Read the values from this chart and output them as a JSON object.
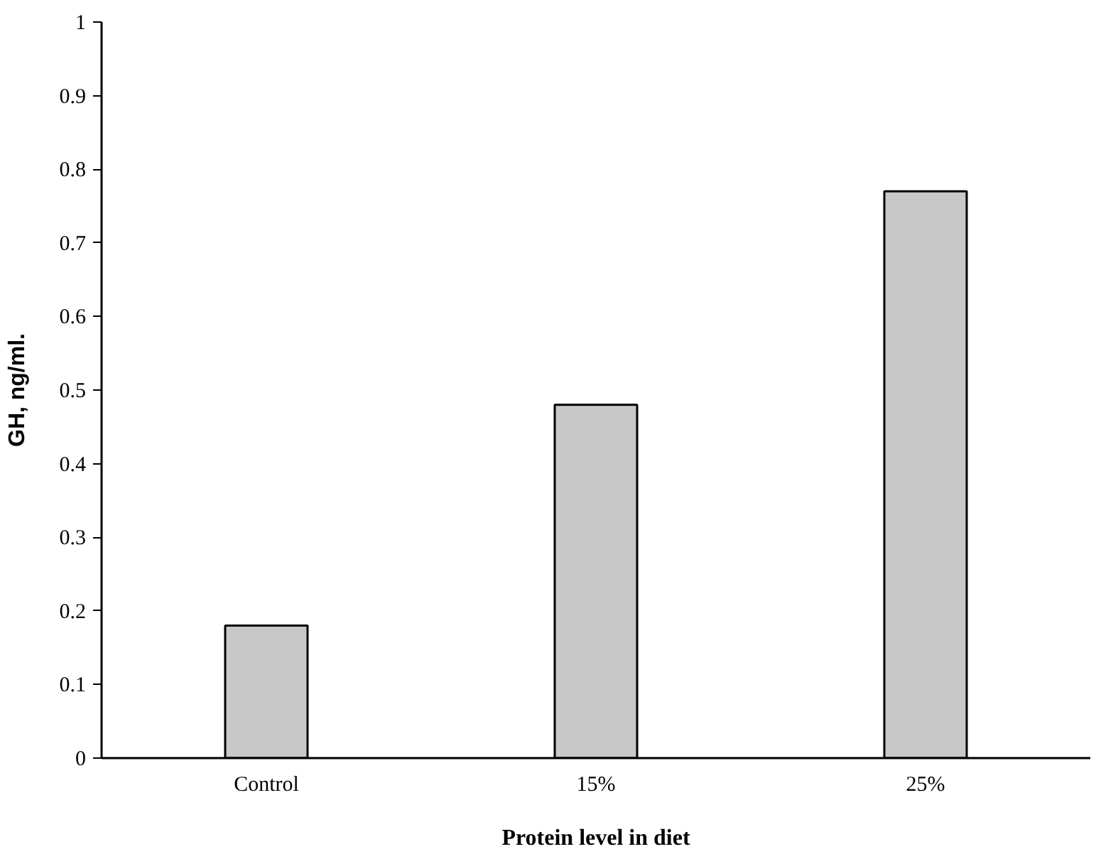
{
  "chart_data": {
    "type": "bar",
    "xlabel": "Protein level in diet",
    "ylabel": "GH, ng/ml.",
    "categories": [
      "Control",
      "15%",
      "25%"
    ],
    "values": [
      0.18,
      0.48,
      0.77
    ],
    "color": "#c8c8c8",
    "ylim": [
      0,
      1
    ],
    "yticks": [
      0,
      0.1,
      0.2,
      0.3,
      0.4,
      0.5,
      0.6,
      0.7,
      0.8,
      0.9,
      1
    ],
    "grid": false
  }
}
